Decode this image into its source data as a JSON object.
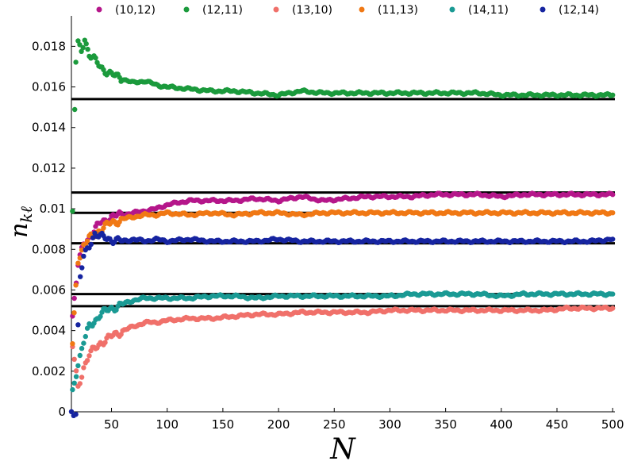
{
  "chart_data": {
    "type": "scatter",
    "title": "",
    "xlabel": "N",
    "ylabel": "n_{kℓ}",
    "xlim": [
      14,
      502
    ],
    "ylim": [
      0,
      0.0195
    ],
    "xticks": [
      50,
      100,
      150,
      200,
      250,
      300,
      350,
      400,
      450,
      500
    ],
    "xtick_labels": [
      "50",
      "100",
      "150",
      "200",
      "250",
      "300",
      "350",
      "400",
      "450",
      "500"
    ],
    "yticks": [
      0,
      0.002,
      0.004,
      0.006,
      0.008,
      0.01,
      0.012,
      0.014,
      0.016,
      0.018
    ],
    "ytick_labels": [
      "0",
      "0.002",
      "0.004",
      "0.006",
      "0.008",
      "0.01",
      "0.012",
      "0.014",
      "0.016",
      "0.018"
    ],
    "grid": false,
    "legend_position": "top",
    "series": [
      {
        "name": "(10,12)",
        "color": "#b5168a",
        "limit": 0.0108,
        "points": [
          [
            15,
            0.0047
          ],
          [
            20,
            0.0072
          ],
          [
            25,
            0.0083
          ],
          [
            30,
            0.0086
          ],
          [
            40,
            0.0093
          ],
          [
            50,
            0.0096
          ],
          [
            60,
            0.0097
          ],
          [
            70,
            0.0098
          ],
          [
            80,
            0.0099
          ],
          [
            90,
            0.01
          ],
          [
            100,
            0.0102
          ],
          [
            120,
            0.0104
          ],
          [
            140,
            0.0104
          ],
          [
            160,
            0.0104
          ],
          [
            180,
            0.0105
          ],
          [
            200,
            0.0104
          ],
          [
            220,
            0.0106
          ],
          [
            240,
            0.0104
          ],
          [
            260,
            0.0105
          ],
          [
            280,
            0.0106
          ],
          [
            300,
            0.0106
          ],
          [
            320,
            0.0106
          ],
          [
            340,
            0.0107
          ],
          [
            360,
            0.0107
          ],
          [
            380,
            0.0107
          ],
          [
            400,
            0.0106
          ],
          [
            420,
            0.0107
          ],
          [
            440,
            0.0107
          ],
          [
            460,
            0.0107
          ],
          [
            480,
            0.0107
          ],
          [
            500,
            0.0107
          ]
        ]
      },
      {
        "name": "(12,11)",
        "color": "#1b9a3c",
        "limit": 0.0154,
        "points": [
          [
            15,
            0.0098
          ],
          [
            17,
            0.0149
          ],
          [
            18,
            0.0172
          ],
          [
            20,
            0.0181
          ],
          [
            23,
            0.0178
          ],
          [
            26,
            0.0184
          ],
          [
            30,
            0.0176
          ],
          [
            40,
            0.017
          ],
          [
            50,
            0.0166
          ],
          [
            60,
            0.0164
          ],
          [
            70,
            0.0162
          ],
          [
            80,
            0.0163
          ],
          [
            90,
            0.0161
          ],
          [
            100,
            0.016
          ],
          [
            120,
            0.0159
          ],
          [
            140,
            0.0158
          ],
          [
            160,
            0.0158
          ],
          [
            180,
            0.0157
          ],
          [
            200,
            0.0156
          ],
          [
            220,
            0.0158
          ],
          [
            240,
            0.0157
          ],
          [
            260,
            0.0157
          ],
          [
            280,
            0.0157
          ],
          [
            300,
            0.0157
          ],
          [
            320,
            0.0157
          ],
          [
            340,
            0.0157
          ],
          [
            360,
            0.0157
          ],
          [
            380,
            0.0157
          ],
          [
            400,
            0.0156
          ],
          [
            420,
            0.0156
          ],
          [
            440,
            0.0156
          ],
          [
            460,
            0.0156
          ],
          [
            480,
            0.0156
          ],
          [
            500,
            0.0156
          ]
        ]
      },
      {
        "name": "(13,10)",
        "color": "#f0706a",
        "limit": 0.0052,
        "points": [
          [
            15,
            0.0032
          ],
          [
            20,
            0.0012
          ],
          [
            25,
            0.0022
          ],
          [
            30,
            0.0028
          ],
          [
            40,
            0.0034
          ],
          [
            50,
            0.0037
          ],
          [
            60,
            0.004
          ],
          [
            70,
            0.0042
          ],
          [
            80,
            0.0044
          ],
          [
            90,
            0.0044
          ],
          [
            100,
            0.0045
          ],
          [
            120,
            0.0046
          ],
          [
            140,
            0.0046
          ],
          [
            160,
            0.0047
          ],
          [
            180,
            0.0048
          ],
          [
            200,
            0.0048
          ],
          [
            220,
            0.0049
          ],
          [
            240,
            0.0049
          ],
          [
            260,
            0.0049
          ],
          [
            280,
            0.0049
          ],
          [
            300,
            0.005
          ],
          [
            320,
            0.005
          ],
          [
            340,
            0.005
          ],
          [
            360,
            0.005
          ],
          [
            380,
            0.005
          ],
          [
            400,
            0.005
          ],
          [
            420,
            0.005
          ],
          [
            440,
            0.005
          ],
          [
            460,
            0.0051
          ],
          [
            480,
            0.0051
          ],
          [
            500,
            0.0051
          ]
        ]
      },
      {
        "name": "(11,13)",
        "color": "#f07814",
        "limit": 0.0098,
        "points": [
          [
            15,
            0.0033
          ],
          [
            18,
            0.0062
          ],
          [
            20,
            0.0075
          ],
          [
            25,
            0.0082
          ],
          [
            30,
            0.0085
          ],
          [
            40,
            0.009
          ],
          [
            50,
            0.0093
          ],
          [
            60,
            0.0095
          ],
          [
            70,
            0.0096
          ],
          [
            80,
            0.0097
          ],
          [
            90,
            0.0097
          ],
          [
            100,
            0.0098
          ],
          [
            120,
            0.0097
          ],
          [
            140,
            0.0098
          ],
          [
            160,
            0.0097
          ],
          [
            180,
            0.0098
          ],
          [
            200,
            0.0098
          ],
          [
            220,
            0.0097
          ],
          [
            240,
            0.0098
          ],
          [
            260,
            0.0098
          ],
          [
            280,
            0.0098
          ],
          [
            300,
            0.0098
          ],
          [
            320,
            0.0098
          ],
          [
            340,
            0.0098
          ],
          [
            360,
            0.0098
          ],
          [
            380,
            0.0098
          ],
          [
            400,
            0.0098
          ],
          [
            420,
            0.0098
          ],
          [
            440,
            0.0098
          ],
          [
            460,
            0.0098
          ],
          [
            480,
            0.0098
          ],
          [
            500,
            0.0098
          ]
        ]
      },
      {
        "name": "(14,11)",
        "color": "#1a9a94",
        "limit": 0.0058,
        "points": [
          [
            15,
            0.001
          ],
          [
            20,
            0.0024
          ],
          [
            25,
            0.0034
          ],
          [
            30,
            0.0042
          ],
          [
            40,
            0.0048
          ],
          [
            50,
            0.0051
          ],
          [
            60,
            0.0053
          ],
          [
            70,
            0.0055
          ],
          [
            80,
            0.0056
          ],
          [
            90,
            0.0056
          ],
          [
            100,
            0.0056
          ],
          [
            120,
            0.0056
          ],
          [
            140,
            0.0057
          ],
          [
            160,
            0.0057
          ],
          [
            180,
            0.0056
          ],
          [
            200,
            0.0057
          ],
          [
            220,
            0.0057
          ],
          [
            240,
            0.0057
          ],
          [
            260,
            0.0057
          ],
          [
            280,
            0.0057
          ],
          [
            300,
            0.0057
          ],
          [
            320,
            0.0058
          ],
          [
            340,
            0.0058
          ],
          [
            360,
            0.0058
          ],
          [
            380,
            0.0058
          ],
          [
            400,
            0.0057
          ],
          [
            420,
            0.0058
          ],
          [
            440,
            0.0058
          ],
          [
            460,
            0.0058
          ],
          [
            480,
            0.0058
          ],
          [
            500,
            0.0058
          ]
        ]
      },
      {
        "name": "(12,14)",
        "color": "#1624a0",
        "limit": 0.0083,
        "points": [
          [
            14,
            0.0
          ],
          [
            16,
            0.0
          ],
          [
            18,
            0.0
          ],
          [
            20,
            0.0042
          ],
          [
            22,
            0.0066
          ],
          [
            25,
            0.0076
          ],
          [
            30,
            0.0082
          ],
          [
            35,
            0.0088
          ],
          [
            40,
            0.0086
          ],
          [
            50,
            0.0085
          ],
          [
            60,
            0.0084
          ],
          [
            70,
            0.0085
          ],
          [
            80,
            0.0084
          ],
          [
            90,
            0.0085
          ],
          [
            100,
            0.0084
          ],
          [
            120,
            0.0085
          ],
          [
            140,
            0.0084
          ],
          [
            160,
            0.0084
          ],
          [
            180,
            0.0084
          ],
          [
            200,
            0.0085
          ],
          [
            220,
            0.0084
          ],
          [
            240,
            0.0084
          ],
          [
            260,
            0.0084
          ],
          [
            280,
            0.0084
          ],
          [
            300,
            0.0084
          ],
          [
            320,
            0.0084
          ],
          [
            340,
            0.0084
          ],
          [
            360,
            0.0084
          ],
          [
            380,
            0.0084
          ],
          [
            400,
            0.0084
          ],
          [
            420,
            0.0084
          ],
          [
            440,
            0.0084
          ],
          [
            460,
            0.0084
          ],
          [
            480,
            0.0084
          ],
          [
            500,
            0.0085
          ]
        ]
      }
    ]
  }
}
